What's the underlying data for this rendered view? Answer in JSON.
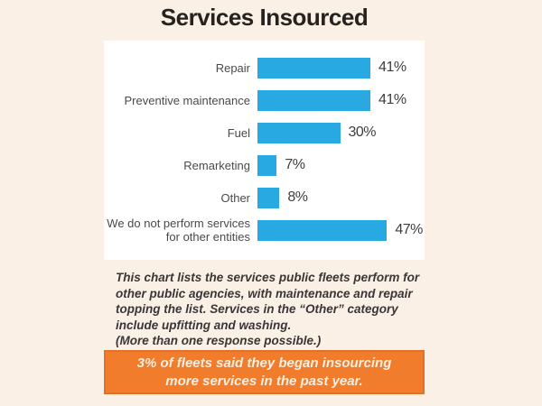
{
  "title": "Services Insourced",
  "chart_data": {
    "type": "bar",
    "orientation": "horizontal",
    "title": "Services Insourced",
    "categories": [
      "Repair",
      "Preventive maintenance",
      "Fuel",
      "Remarketing",
      "Other",
      "We do not perform services for other entities"
    ],
    "values": [
      41,
      41,
      30,
      7,
      8,
      47
    ],
    "value_labels": [
      "41%",
      "41%",
      "30%",
      "7%",
      "8%",
      "47%"
    ],
    "xlabel": "",
    "ylabel": "",
    "xlim": [
      0,
      50
    ],
    "grid": false,
    "legend": false,
    "value_label_position": "right-of-bar",
    "bar_color": "#29A9E1"
  },
  "caption": {
    "body": "This chart lists the services public fleets perform for other public agencies, with maintenance and repair topping the list. Services in the “Other” category include upfitting and washing.",
    "note": "(More than one response possible.)"
  },
  "banner": {
    "lines": [
      "3% of fleets said they began insourcing",
      "more services in the past year."
    ]
  },
  "colors": {
    "page_background": "#FBF0E5",
    "panel_background": "#FFFFFF",
    "bar": "#29A9E1",
    "banner_background": "#F17C2B",
    "banner_border": "#E2702A",
    "banner_text": "#FBEFE2",
    "title_text": "#262220",
    "label_text": "#4A4A4A",
    "value_text": "#3E3E3E",
    "caption_text": "#3A3637"
  }
}
